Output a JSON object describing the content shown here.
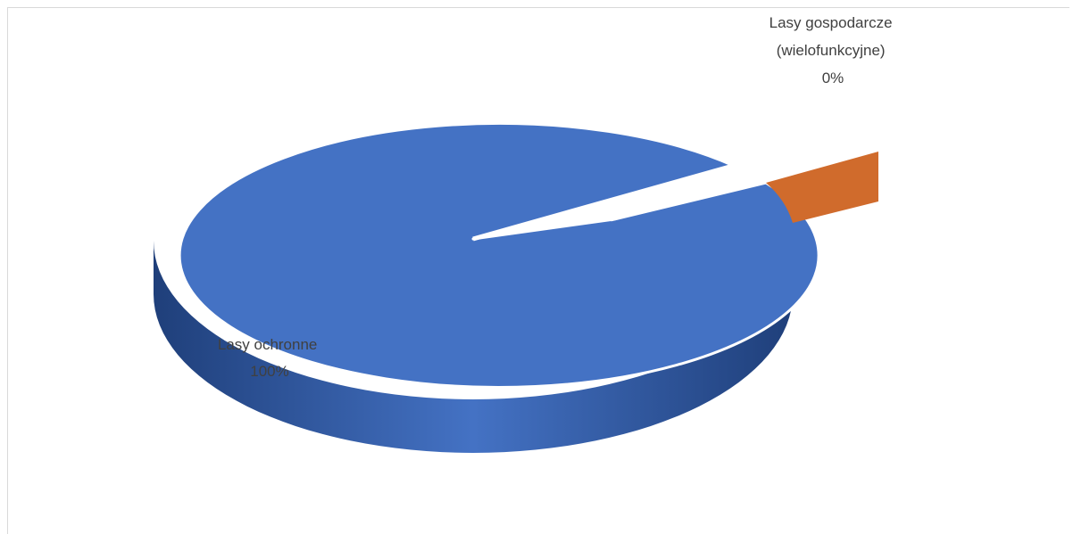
{
  "chart_data": {
    "type": "pie",
    "style": "3d-exploded",
    "title": "",
    "slices": [
      {
        "label": "Lasy ochronne",
        "value_label": "100%",
        "value": 100,
        "color": "#4472C4",
        "side_color": "#2F5597"
      },
      {
        "label": "Lasy gospodarcze (wielofunkcyjne)",
        "label_lines": [
          "Lasy gospodarcze",
          "(wielofunkcyjne)"
        ],
        "value_label": "0%",
        "value": 0,
        "color": "#D06B2C"
      }
    ],
    "legend": "none",
    "data_labels": "outside-end"
  }
}
